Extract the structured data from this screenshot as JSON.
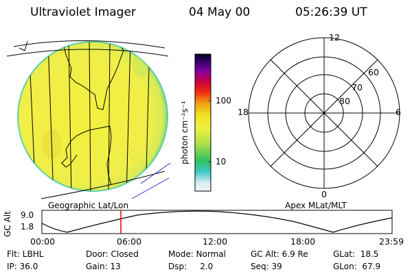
{
  "header": {
    "instrument": "Ultraviolet Imager",
    "date": "04 May 00",
    "time": "05:26:39 UT"
  },
  "image_panel": {
    "label": "Geographic Lat/Lon"
  },
  "colorbar": {
    "unit_label": "photon cm⁻²s⁻¹",
    "ticks": [
      {
        "value": 100,
        "label": "100"
      },
      {
        "value": 10,
        "label": "10"
      }
    ],
    "scale": "log"
  },
  "polar_plot": {
    "label": "Apex MLat/MLT",
    "mlt_labels": {
      "top": "12",
      "left": "18",
      "right": "6",
      "bottom": "0"
    },
    "mlat_labels": [
      "60",
      "70",
      "80"
    ]
  },
  "altitude_plot": {
    "ylabel": "GC Alt",
    "y_ticks": [
      "9.0",
      "1.8"
    ],
    "x_ticks": [
      "00:00",
      "06:00",
      "12:00",
      "18:00",
      "23:59"
    ],
    "marker_color": "#e00000"
  },
  "status": {
    "row1": [
      {
        "label": "Flt: LBHL"
      },
      {
        "label": "Door: Closed"
      },
      {
        "label": "Mode: Normal"
      },
      {
        "label": "GC Alt: 6.9 Re"
      },
      {
        "label": "GLat:  18.5"
      }
    ],
    "row2": [
      {
        "label": "IP: 36.0"
      },
      {
        "label": "Gain: 13"
      },
      {
        "label": "Dsp:     2.0"
      },
      {
        "label": "Seq: 39"
      },
      {
        "label": "GLon:  67.9"
      }
    ]
  }
}
